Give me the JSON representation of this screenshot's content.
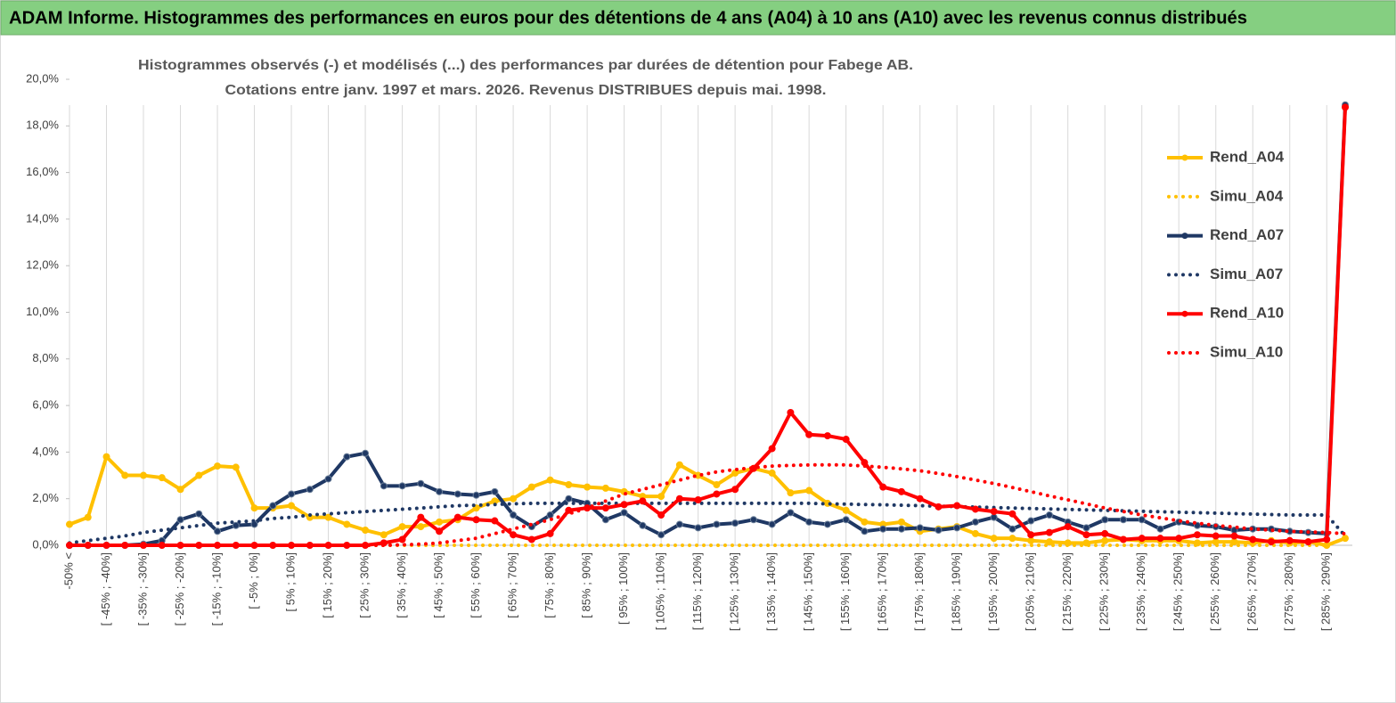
{
  "header": {
    "title": "ADAM Informe. Histogrammes des performances en euros pour des détentions de 4 ans (A04) à 10 ans (A10) avec les revenus connus distribués"
  },
  "chart_data": {
    "type": "line",
    "title": "Histogrammes observés (-) et modélisés (...) des performances par durées de détention pour Fabege AB.",
    "subtitle": "Cotations entre janv. 1997 et mars. 2026. Revenus DISTRIBUES depuis mai. 1998.",
    "categories": [
      "-50% <",
      null,
      "[ -45% ; -40%]",
      null,
      "[ -35% ; -30%]",
      null,
      "[ -25% ; -20%]",
      null,
      "[ -15% ; -10%]",
      null,
      "[ -5% ; 0%]",
      null,
      "[ 5% ; 10%]",
      null,
      "[ 15% ; 20%]",
      null,
      "[ 25% ; 30%]",
      null,
      "[ 35% ; 40%]",
      null,
      "[ 45% ; 50%]",
      null,
      "[ 55% ; 60%]",
      null,
      "[ 65% ; 70%]",
      null,
      "[ 75% ; 80%]",
      null,
      "[ 85% ; 90%]",
      null,
      "[ 95% ; 100%]",
      null,
      "[ 105% ; 110%]",
      null,
      "[ 115% ; 120%]",
      null,
      "[ 125% ; 130%]",
      null,
      "[ 135% ; 140%]",
      null,
      "[ 145% ; 150%]",
      null,
      "[ 155% ; 160%]",
      null,
      "[ 165% ; 170%]",
      null,
      "[ 175% ; 180%]",
      null,
      "[ 185% ; 190%]",
      null,
      "[ 195% ; 200%]",
      null,
      "[ 205% ; 210%]",
      null,
      "[ 215% ; 220%]",
      null,
      "[ 225% ; 230%]",
      null,
      "[ 235% ; 240%]",
      null,
      "[ 245% ; 250%]",
      null,
      "[ 255% ; 260%]",
      null,
      "[ 265% ; 270%]",
      null,
      "[ 275% ; 280%]",
      null,
      "[ 285% ; 290%]",
      null
    ],
    "series": [
      {
        "name": "Rend_A04",
        "color": "#ffc000",
        "style": "solid",
        "markers": true,
        "values": [
          0.9,
          1.2,
          3.8,
          3.0,
          3.0,
          2.9,
          2.4,
          3.0,
          3.4,
          3.35,
          1.6,
          1.6,
          1.7,
          1.2,
          1.2,
          0.9,
          0.65,
          0.45,
          0.8,
          0.8,
          1.0,
          1.1,
          1.6,
          1.9,
          2.0,
          2.5,
          2.8,
          2.6,
          2.5,
          2.45,
          2.3,
          2.1,
          2.1,
          3.45,
          3.0,
          2.6,
          3.1,
          3.3,
          3.1,
          2.25,
          2.35,
          1.8,
          1.5,
          1.0,
          0.9,
          1.0,
          0.6,
          0.7,
          0.8,
          0.5,
          0.3,
          0.3,
          0.2,
          0.15,
          0.1,
          0.1,
          0.2,
          0.25,
          0.2,
          0.2,
          0.2,
          0.1,
          0.15,
          0.15,
          0.1,
          0.2,
          0.1,
          0.15,
          0.0,
          0.3
        ]
      },
      {
        "name": "Simu_A04",
        "color": "#ffc000",
        "style": "dotted",
        "markers": false,
        "values": [
          0,
          0,
          0,
          0,
          0,
          0,
          0,
          0,
          0,
          0,
          0,
          0,
          0,
          0,
          0,
          0,
          0,
          0,
          0,
          0,
          0,
          0,
          0,
          0,
          0,
          0,
          0,
          0,
          0,
          0,
          0,
          0,
          0,
          0,
          0,
          0,
          0,
          0,
          0,
          0,
          0,
          0,
          0,
          0,
          0,
          0,
          0,
          0,
          0,
          0,
          0,
          0,
          0,
          0,
          0,
          0,
          0,
          0,
          0,
          0,
          0,
          0,
          0,
          0,
          0,
          0,
          0,
          0,
          0,
          0.3
        ]
      },
      {
        "name": "Rend_A07",
        "color": "#1f3864",
        "style": "solid",
        "markers": true,
        "values": [
          0,
          0,
          0,
          0,
          0.05,
          0.2,
          1.1,
          1.35,
          0.6,
          0.85,
          0.9,
          1.7,
          2.2,
          2.4,
          2.85,
          3.8,
          3.95,
          2.55,
          2.55,
          2.65,
          2.3,
          2.2,
          2.15,
          2.3,
          1.3,
          0.8,
          1.3,
          2.0,
          1.8,
          1.1,
          1.4,
          0.85,
          0.45,
          0.9,
          0.75,
          0.9,
          0.95,
          1.1,
          0.9,
          1.4,
          1.0,
          0.9,
          1.1,
          0.6,
          0.7,
          0.7,
          0.75,
          0.65,
          0.75,
          1.0,
          1.2,
          0.7,
          1.05,
          1.3,
          1.0,
          0.75,
          1.1,
          1.1,
          1.1,
          0.7,
          1.0,
          0.85,
          0.8,
          0.65,
          0.7,
          0.7,
          0.6,
          0.55,
          0.5,
          18.9
        ]
      },
      {
        "name": "Simu_A07",
        "color": "#1f3864",
        "style": "dotted",
        "markers": false,
        "values": [
          0.1,
          0.2,
          0.3,
          0.4,
          0.55,
          0.65,
          0.75,
          0.85,
          0.95,
          1.0,
          1.05,
          1.15,
          1.2,
          1.3,
          1.35,
          1.4,
          1.45,
          1.5,
          1.55,
          1.6,
          1.65,
          1.7,
          1.72,
          1.75,
          1.78,
          1.8,
          1.8,
          1.8,
          1.8,
          1.8,
          1.8,
          1.8,
          1.8,
          1.8,
          1.8,
          1.8,
          1.8,
          1.8,
          1.8,
          1.8,
          1.8,
          1.78,
          1.77,
          1.75,
          1.74,
          1.72,
          1.7,
          1.68,
          1.66,
          1.64,
          1.62,
          1.6,
          1.58,
          1.56,
          1.54,
          1.52,
          1.5,
          1.48,
          1.46,
          1.44,
          1.42,
          1.4,
          1.38,
          1.36,
          1.34,
          1.32,
          1.3,
          1.3,
          1.3,
          0.4
        ]
      },
      {
        "name": "Rend_A10",
        "color": "#ff0000",
        "style": "solid",
        "markers": true,
        "values": [
          0,
          0,
          0,
          0,
          0,
          0,
          0,
          0,
          0,
          0,
          0,
          0,
          0,
          0,
          0,
          0,
          0,
          0.1,
          0.25,
          1.2,
          0.6,
          1.2,
          1.1,
          1.05,
          0.45,
          0.25,
          0.5,
          1.5,
          1.6,
          1.6,
          1.75,
          1.9,
          1.3,
          2.0,
          1.95,
          2.2,
          2.4,
          3.3,
          4.15,
          5.7,
          4.75,
          4.7,
          4.55,
          3.55,
          2.5,
          2.3,
          2.0,
          1.65,
          1.7,
          1.55,
          1.45,
          1.35,
          0.45,
          0.55,
          0.8,
          0.45,
          0.5,
          0.25,
          0.3,
          0.3,
          0.3,
          0.45,
          0.4,
          0.4,
          0.25,
          0.15,
          0.2,
          0.15,
          0.25,
          18.8
        ]
      },
      {
        "name": "Simu_A10",
        "color": "#ff0000",
        "style": "dotted",
        "markers": false,
        "values": [
          0,
          0,
          0,
          0,
          0,
          0,
          0,
          0,
          0,
          0,
          0,
          0,
          0,
          0,
          0,
          0,
          0,
          0,
          0.02,
          0.05,
          0.1,
          0.2,
          0.3,
          0.5,
          0.7,
          0.9,
          1.1,
          1.35,
          1.6,
          1.9,
          2.2,
          2.4,
          2.6,
          2.8,
          3.0,
          3.15,
          3.25,
          3.33,
          3.4,
          3.43,
          3.45,
          3.45,
          3.45,
          3.4,
          3.35,
          3.28,
          3.2,
          3.08,
          2.95,
          2.8,
          2.65,
          2.48,
          2.3,
          2.12,
          1.95,
          1.78,
          1.6,
          1.45,
          1.3,
          1.18,
          1.05,
          0.95,
          0.85,
          0.78,
          0.7,
          0.65,
          0.6,
          0.57,
          0.55,
          0.5
        ]
      }
    ],
    "ylim": [
      0,
      20
    ],
    "yticks": [
      {
        "value": 0,
        "label": "0,0%"
      },
      {
        "value": 2,
        "label": "2,0%"
      },
      {
        "value": 4,
        "label": "4,0%"
      },
      {
        "value": 6,
        "label": "6,0%"
      },
      {
        "value": 8,
        "label": "8,0%"
      },
      {
        "value": 10,
        "label": "10,0%"
      },
      {
        "value": 12,
        "label": "12,0%"
      },
      {
        "value": 14,
        "label": "14,0%"
      },
      {
        "value": 16,
        "label": "16,0%"
      },
      {
        "value": 18,
        "label": "18,0%"
      },
      {
        "value": 20,
        "label": "20,0%"
      }
    ],
    "grid": "x",
    "legend": "right"
  }
}
